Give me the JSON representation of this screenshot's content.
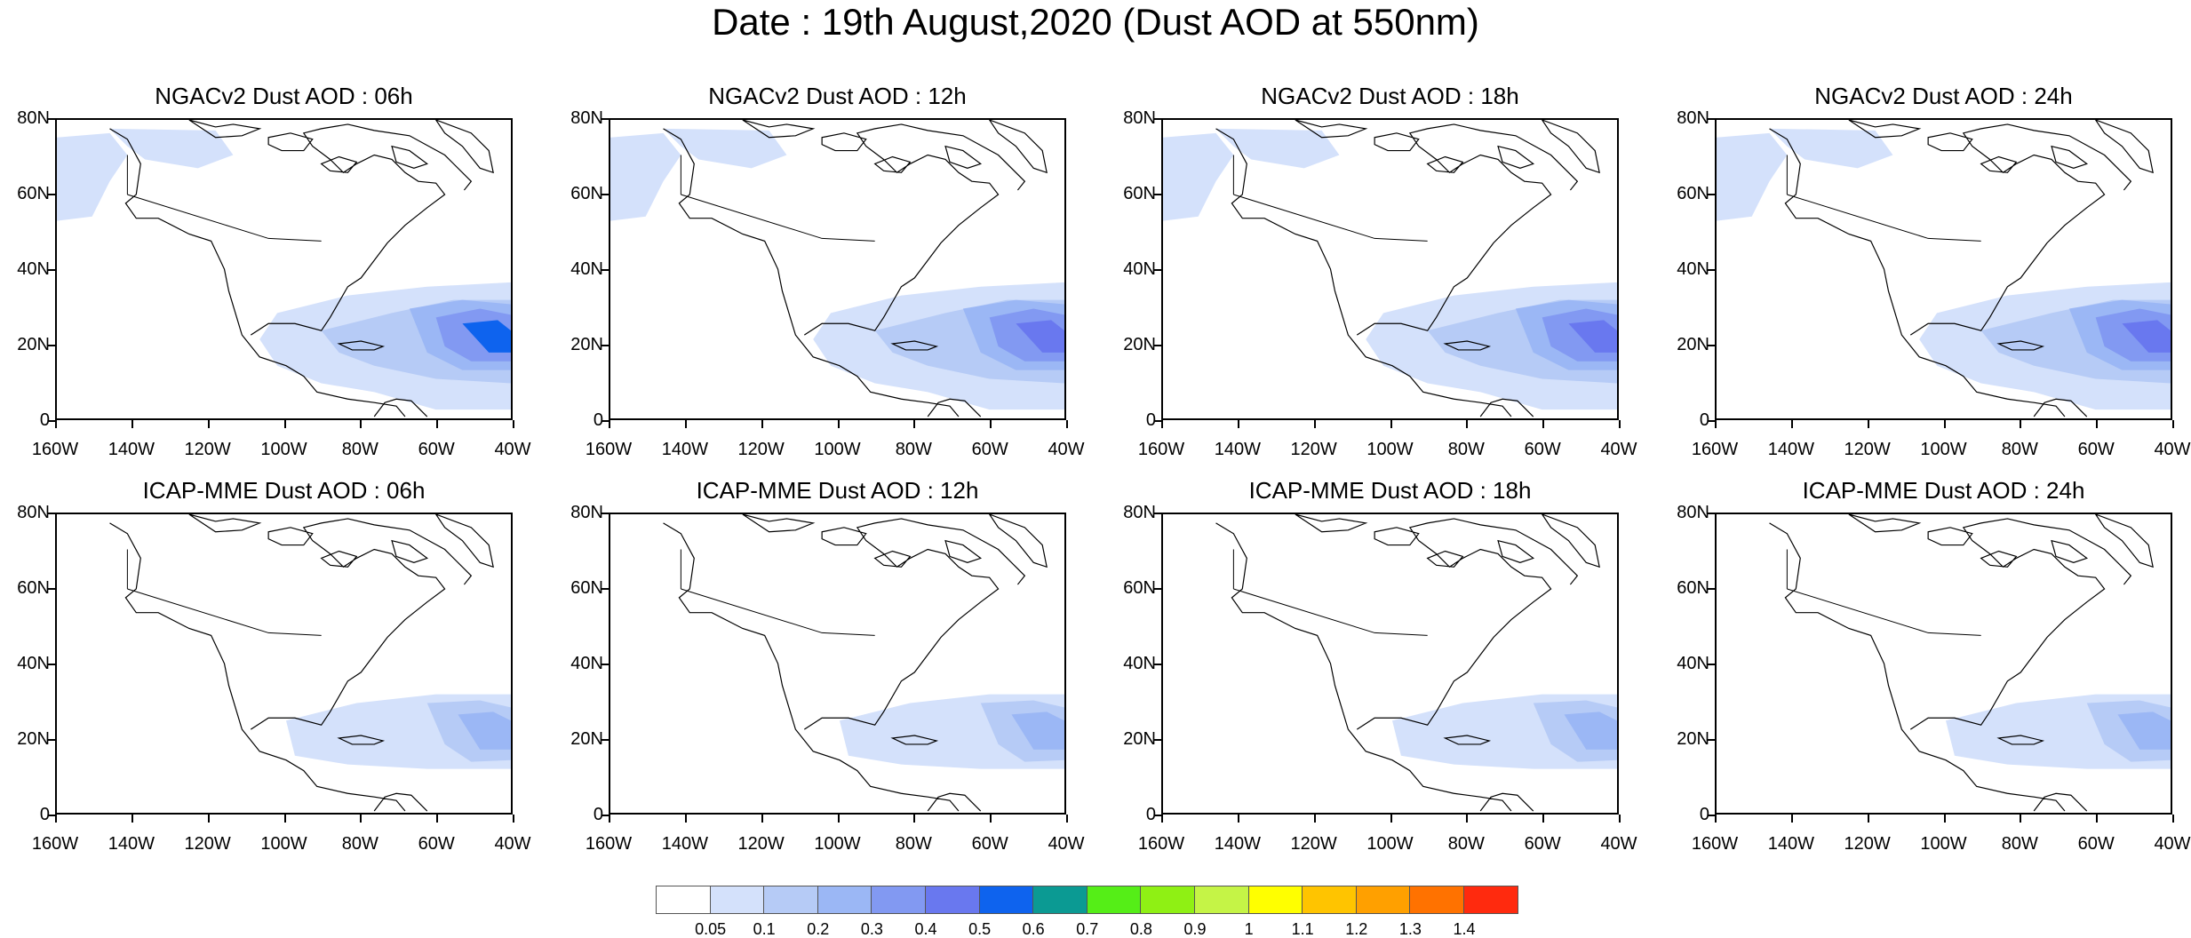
{
  "title": "Date : 19th August,2020 (Dust AOD at 550nm)",
  "panels": [
    {
      "title": "NGACv2 Dust AOD : 06h",
      "model": "NGACv2",
      "hour": "06h"
    },
    {
      "title": "NGACv2 Dust AOD : 12h",
      "model": "NGACv2",
      "hour": "12h"
    },
    {
      "title": "NGACv2 Dust AOD : 18h",
      "model": "NGACv2",
      "hour": "18h"
    },
    {
      "title": "NGACv2 Dust AOD : 24h",
      "model": "NGACv2",
      "hour": "24h"
    },
    {
      "title": "ICAP-MME Dust AOD : 06h",
      "model": "ICAP-MME",
      "hour": "06h"
    },
    {
      "title": "ICAP-MME Dust AOD : 12h",
      "model": "ICAP-MME",
      "hour": "12h"
    },
    {
      "title": "ICAP-MME Dust AOD : 18h",
      "model": "ICAP-MME",
      "hour": "18h"
    },
    {
      "title": "ICAP-MME Dust AOD : 24h",
      "model": "ICAP-MME",
      "hour": "24h"
    }
  ],
  "axes": {
    "lat_labels": [
      "80N",
      "60N",
      "40N",
      "20N",
      "0"
    ],
    "lon_labels": [
      "160W",
      "140W",
      "120W",
      "100W",
      "80W",
      "60W",
      "40W"
    ]
  },
  "colorbar": {
    "labels": [
      "0.05",
      "0.1",
      "0.2",
      "0.3",
      "0.4",
      "0.5",
      "0.6",
      "0.7",
      "0.8",
      "0.9",
      "1",
      "1.1",
      "1.2",
      "1.3",
      "1.4"
    ],
    "colors": [
      "#ffffff",
      "#d4e1fb",
      "#b6cbf6",
      "#9bb7f5",
      "#8299f2",
      "#6978ef",
      "#0e63ee",
      "#0b9a93",
      "#55ee17",
      "#8ff014",
      "#c5f446",
      "#ffff00",
      "#ffc400",
      "#ffa000",
      "#ff7200",
      "#ff2a0e"
    ]
  }
}
